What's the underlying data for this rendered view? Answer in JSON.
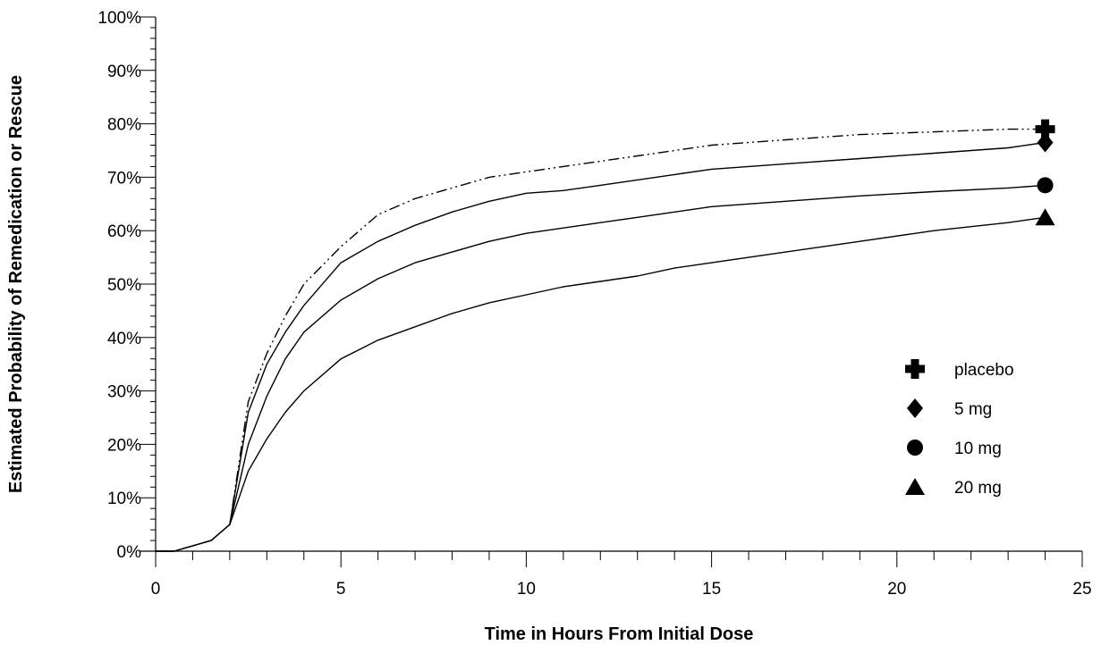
{
  "chart_data": {
    "type": "line",
    "title": "",
    "xlabel": "Time in Hours From Initial Dose",
    "ylabel": "Estimated Probability of Remedication or Rescue",
    "xlim": [
      0,
      25
    ],
    "ylim": [
      0,
      100
    ],
    "x_ticks": [
      0,
      5,
      10,
      15,
      20,
      25
    ],
    "y_ticks": [
      0,
      10,
      20,
      30,
      40,
      50,
      60,
      70,
      80,
      90,
      100
    ],
    "y_tick_labels": [
      "0%",
      "10%",
      "20%",
      "30%",
      "40%",
      "50%",
      "60%",
      "70%",
      "80%",
      "90%",
      "100%"
    ],
    "x_tick_labels": [
      "0",
      "5",
      "10",
      "15",
      "20",
      "25"
    ],
    "grid": false,
    "legend_position": "bottom-right",
    "series": [
      {
        "name": "placebo",
        "marker": "plus",
        "line_style": "dash-dot-dot",
        "x": [
          0,
          0.5,
          1,
          1.5,
          2,
          2.5,
          3,
          3.5,
          4,
          5,
          6,
          7,
          8,
          9,
          10,
          11,
          12,
          13,
          14,
          15,
          17,
          19,
          21,
          23,
          24
        ],
        "y": [
          0,
          0,
          1,
          2,
          5,
          28,
          37,
          44,
          50,
          57,
          63,
          66,
          68,
          70,
          71,
          72,
          73,
          74,
          75,
          76,
          77,
          78,
          78.5,
          79,
          79
        ]
      },
      {
        "name": "5 mg",
        "marker": "diamond",
        "line_style": "solid",
        "x": [
          0,
          0.5,
          1,
          1.5,
          2,
          2.5,
          3,
          3.5,
          4,
          5,
          6,
          7,
          8,
          9,
          10,
          11,
          12,
          13,
          14,
          15,
          17,
          19,
          21,
          23,
          24
        ],
        "y": [
          0,
          0,
          1,
          2,
          5,
          26,
          35,
          41,
          46,
          54,
          58,
          61,
          63.5,
          65.5,
          67,
          67.5,
          68.5,
          69.5,
          70.5,
          71.5,
          72.5,
          73.5,
          74.5,
          75.5,
          76.5
        ]
      },
      {
        "name": "10 mg",
        "marker": "circle",
        "line_style": "solid",
        "x": [
          0,
          0.5,
          1,
          1.5,
          2,
          2.5,
          3,
          3.5,
          4,
          5,
          6,
          7,
          8,
          9,
          10,
          11,
          12,
          13,
          14,
          15,
          17,
          19,
          21,
          23,
          24
        ],
        "y": [
          0,
          0,
          1,
          2,
          5,
          20,
          29,
          36,
          41,
          47,
          51,
          54,
          56,
          58,
          59.5,
          60.5,
          61.5,
          62.5,
          63.5,
          64.5,
          65.5,
          66.5,
          67.3,
          68,
          68.5
        ]
      },
      {
        "name": "20 mg",
        "marker": "triangle",
        "line_style": "solid",
        "x": [
          0,
          0.5,
          1,
          1.5,
          2,
          2.5,
          3,
          3.5,
          4,
          5,
          6,
          7,
          8,
          9,
          10,
          11,
          12,
          13,
          14,
          15,
          17,
          19,
          21,
          23,
          24
        ],
        "y": [
          0,
          0,
          1,
          2,
          5,
          15,
          21,
          26,
          30,
          36,
          39.5,
          42,
          44.5,
          46.5,
          48,
          49.5,
          50.5,
          51.5,
          53,
          54,
          56,
          58,
          60,
          61.5,
          62.5
        ]
      }
    ]
  }
}
